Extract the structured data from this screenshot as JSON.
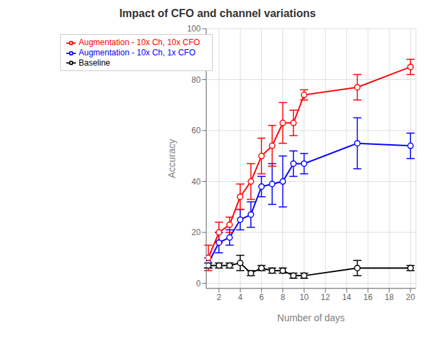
{
  "chart_data": {
    "type": "line",
    "title": "Impact of CFO and channel variations",
    "xlabel": "Number of days",
    "ylabel": "Accuracy",
    "x": [
      1,
      2,
      3,
      4,
      5,
      6,
      7,
      8,
      9,
      10,
      15,
      20
    ],
    "series": [
      {
        "name": "Augmentation - 10x Ch, 1x CFO",
        "color": "#0000ff",
        "values": [
          8.0,
          16,
          18,
          25,
          27,
          38,
          39,
          40,
          47,
          47,
          55,
          54
        ],
        "errors": [
          2.0,
          4,
          3,
          4,
          5,
          4,
          8,
          10,
          5,
          4,
          10,
          5
        ]
      },
      {
        "name": "Augmentation - 10x Ch, 10x CFO",
        "color": "#ff0000",
        "values": [
          10,
          20,
          23,
          34,
          40,
          50,
          54,
          63,
          63,
          74,
          77,
          85
        ],
        "errors": [
          5,
          4,
          3,
          5,
          7,
          7,
          8,
          8,
          5,
          2,
          5,
          3
        ]
      },
      {
        "name": "Baseline",
        "color": "#000000",
        "values": [
          7,
          7,
          7,
          8,
          4,
          6,
          5,
          5,
          3,
          3,
          6,
          6
        ],
        "errors": [
          1,
          1,
          1,
          3,
          1,
          1,
          1,
          1,
          1,
          1,
          3,
          1
        ]
      }
    ],
    "xlim": [
      0.8,
      20.5
    ],
    "ylim": [
      -2,
      100
    ],
    "xticks": [
      2,
      4,
      6,
      8,
      10,
      12,
      14,
      16,
      18,
      20
    ],
    "yticks": [
      0,
      20,
      40,
      60,
      80,
      100
    ],
    "grid": true,
    "legend": "upper left",
    "marker": "circle"
  }
}
